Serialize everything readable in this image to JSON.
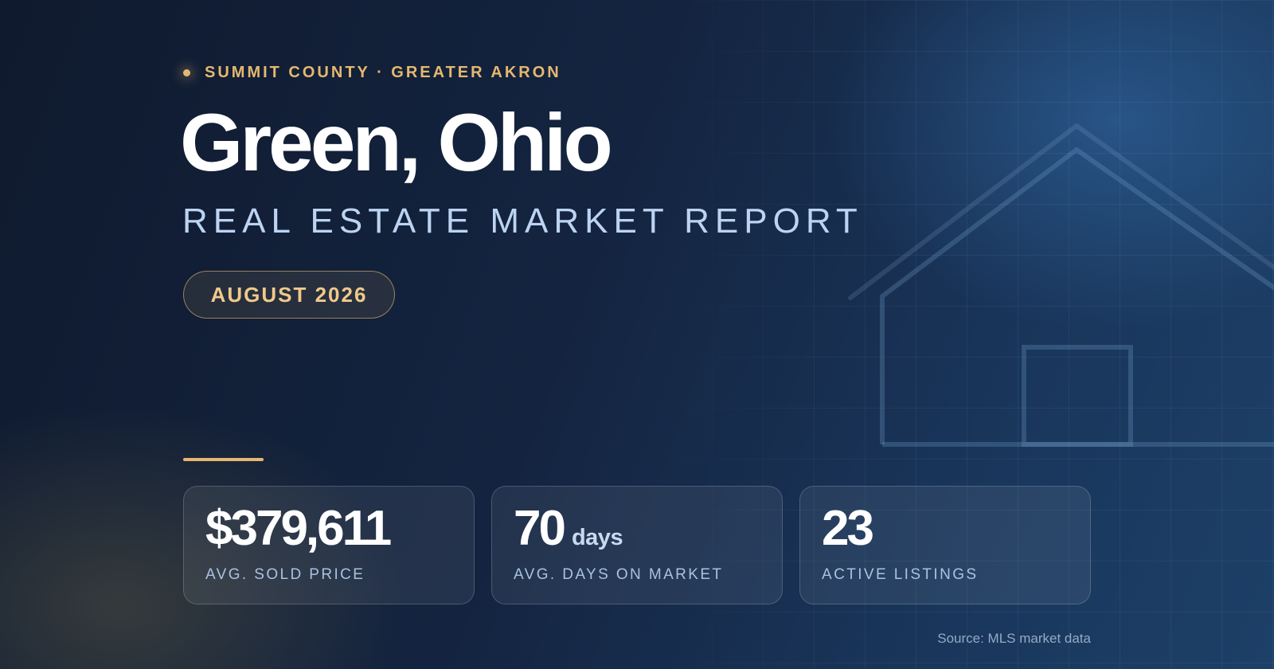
{
  "eyebrow": "SUMMIT COUNTY · GREATER AKRON",
  "title": "Green, Ohio",
  "subtitle": "REAL ESTATE MARKET REPORT",
  "date_badge": "AUGUST 2026",
  "stats": [
    {
      "value": "$379,611",
      "unit": "",
      "label": "AVG. SOLD PRICE"
    },
    {
      "value": "70",
      "unit": "days",
      "label": "AVG. DAYS ON MARKET"
    },
    {
      "value": "23",
      "unit": "",
      "label": "ACTIVE LISTINGS"
    }
  ],
  "source": "Source: MLS market data",
  "colors": {
    "accent": "#e5b870",
    "background": "#142440",
    "subtitle": "#bcd4f2"
  },
  "icons": {
    "decorative_illustration": "house-outline-icon",
    "eyebrow_marker": "dot-icon"
  }
}
